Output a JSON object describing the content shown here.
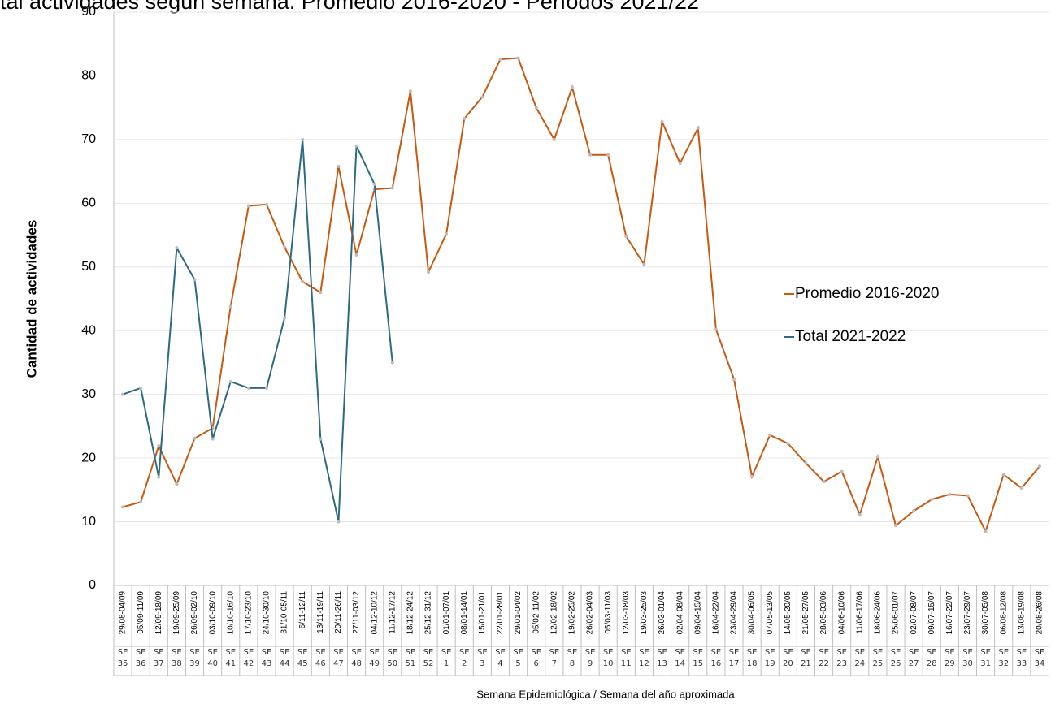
{
  "chart_data": {
    "type": "line",
    "title": "tal actividades según semana: Promedio 2016-2020 - Períodos 2021/22",
    "x_label": "Semana Epidemiológica / Semana del año aproximada",
    "y_label": "Cantidad de actividades",
    "categories": [
      "29/08-04/09",
      "05/09-11/09",
      "12/09-18/09",
      "19/09-25/09",
      "26/09-02/10",
      "03/10-09/10",
      "10/10-16/10",
      "17/10-23/10",
      "24/10-30/10",
      "31/10-05/11",
      "6/11-12/11",
      "13/11-19/11",
      "20/11-26/11",
      "27/11-03/12",
      "04/12-10/12",
      "11/12-17/12",
      "18/12-24/12",
      "25/12-31/12",
      "01/01-07/01",
      "08/01-14/01",
      "15/01-21/01",
      "22/01-28/01",
      "29/01-04/02",
      "05/02-11/02",
      "12/02-18/02",
      "19/02-25/02",
      "26/02-04/03",
      "05/03-11/03",
      "12/03-18/03",
      "19/03-25/03",
      "26/03-01/04",
      "02/04-08/04",
      "09/04-15/04",
      "16/04-22/04",
      "23/04-29/04",
      "30/04-06/05",
      "07/05-13/05",
      "14/05-20/05",
      "21/05-27/05",
      "28/05-03/06",
      "04/06-10/06",
      "11/06-17/06",
      "18/06-24/06",
      "25/06-01/07",
      "02/07-08/07",
      "09/07-15/07",
      "16/07-22/07",
      "23/07-29/07",
      "30/07-05/08",
      "06/08-12/08",
      "13/08-19/08",
      "20/08-26/08"
    ],
    "weeks": [
      "SE 35",
      "SE 36",
      "SE 37",
      "SE 38",
      "SE 39",
      "SE 40",
      "SE 41",
      "SE 42",
      "SE 43",
      "SE 44",
      "SE 45",
      "SE 46",
      "SE 47",
      "SE 48",
      "SE 49",
      "SE 50",
      "SE 51",
      "SE 52",
      "SE 1",
      "SE 2",
      "SE 3",
      "SE 4",
      "SE 5",
      "SE 6",
      "SE 7",
      "SE 8",
      "SE 9",
      "SE 10",
      "SE 11",
      "SE 12",
      "SE 13",
      "SE 14",
      "SE 15",
      "SE 16",
      "SE 17",
      "SE 18",
      "SE 19",
      "SE 20",
      "SE 21",
      "SE 22",
      "SE 23",
      "SE 24",
      "SE 25",
      "SE 26",
      "SE 27",
      "SE 28",
      "SE 29",
      "SE 30",
      "SE 31",
      "SE 32",
      "SE 33",
      "SE 34"
    ],
    "series": [
      {
        "name": "Promedio 2016-2020",
        "color": "#c55a11",
        "values": [
          12.3,
          13.1,
          21.9,
          15.9,
          23.1,
          24.7,
          43.8,
          59.6,
          59.8,
          53.1,
          47.7,
          46,
          65.8,
          51.9,
          62.2,
          62.4,
          77.6,
          49.2,
          55.2,
          73.3,
          76.7,
          82.6,
          82.8,
          75,
          70,
          78.2,
          67.6,
          67.6,
          54.8,
          50.4,
          72.8,
          66.3,
          71.8,
          40.2,
          32.4,
          17.1,
          23.6,
          22.3,
          19.2,
          16.3,
          17.9,
          11.1,
          20.2,
          9.4,
          11.7,
          13.5,
          14.3,
          14.1,
          8.5,
          17.4,
          15.3,
          18.7
        ]
      },
      {
        "name": "Total 2021-2022",
        "color": "#2e6b80",
        "values": [
          30,
          31,
          17,
          53,
          48,
          23,
          32,
          31,
          31,
          42,
          70,
          23,
          10,
          69,
          63,
          35,
          null,
          null,
          null,
          null,
          null,
          null,
          null,
          null,
          null,
          null,
          null,
          null,
          null,
          null,
          null,
          null,
          null,
          null,
          null,
          null,
          null,
          null,
          null,
          null,
          null,
          null,
          null,
          null,
          null,
          null,
          null,
          null,
          null,
          null,
          null,
          null
        ]
      }
    ],
    "ylim": [
      0,
      90
    ],
    "yticks": [
      0,
      10,
      20,
      30,
      40,
      50,
      60,
      70,
      80,
      90
    ],
    "grid": true
  }
}
